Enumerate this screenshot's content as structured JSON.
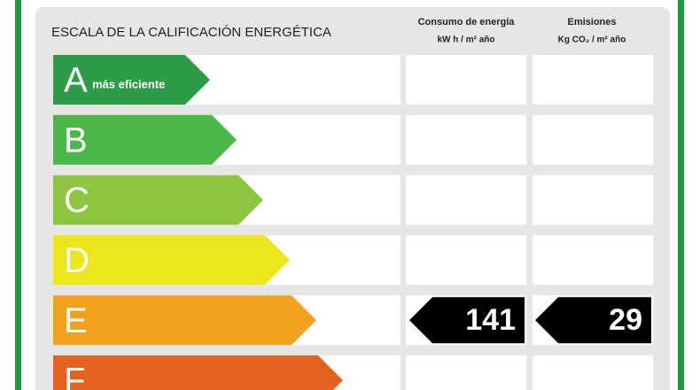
{
  "header": {
    "title": "ESCALA DE LA CALIFICACIÓN ENERGÉTICA",
    "columns": [
      {
        "title": "Consumo de energía",
        "unit": "kW h / m² año"
      },
      {
        "title": "Emisiones",
        "unit": "Kg CO₂ / m² año"
      }
    ]
  },
  "rows": [
    {
      "letter": "A",
      "note": "más eficiente",
      "color": "#2e9b47"
    },
    {
      "letter": "B",
      "color": "#4cb748"
    },
    {
      "letter": "C",
      "color": "#8cc63e"
    },
    {
      "letter": "D",
      "color": "#ede61b"
    },
    {
      "letter": "E",
      "color": "#f0a21f",
      "consumption": 141,
      "emissions": 29
    },
    {
      "letter": "F",
      "color": "#e4621d"
    }
  ]
}
